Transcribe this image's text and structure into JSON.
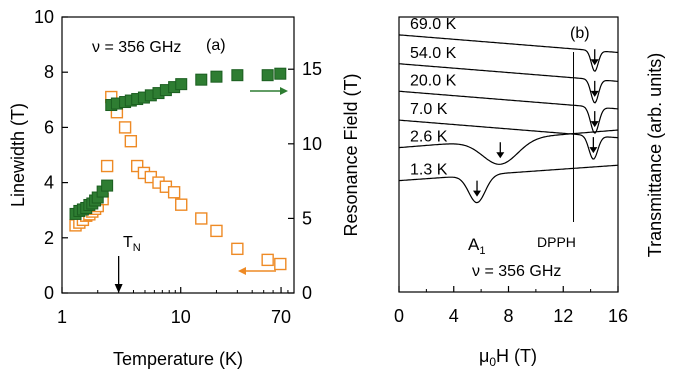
{
  "chart_data": [
    {
      "panel": "(a)",
      "type": "scatter",
      "annotation": "ν = 356 GHz",
      "xlabel": "Temperature (K)",
      "ylabel_left": "Linewidth (T)",
      "ylabel_right": "Resonance Field (T)",
      "x_scale": "log",
      "xlim": [
        1,
        90
      ],
      "ylim_left": [
        0,
        10
      ],
      "ylim_right": [
        0,
        18.5
      ],
      "x_ticks": [
        1,
        10,
        70
      ],
      "y_ticks_left": [
        0,
        2,
        4,
        6,
        8,
        10
      ],
      "y_ticks_right": [
        0,
        5,
        10,
        15
      ],
      "tn_label": "T",
      "tn_sub": "N",
      "tn_value": 3,
      "series": [
        {
          "color": "#ee8a25",
          "marker": "open-square",
          "axis": "left",
          "x": [
            1.3,
            1.4,
            1.5,
            1.6,
            1.7,
            1.8,
            1.9,
            2.0,
            2.2,
            2.4,
            2.6,
            2.9,
            3.4,
            3.8,
            4.3,
            4.9,
            5.6,
            6.5,
            7.5,
            8.8,
            10.1,
            14.9,
            20.0,
            30.0,
            54.0,
            69.0
          ],
          "y": [
            2.45,
            2.55,
            2.65,
            2.8,
            2.85,
            2.95,
            3.05,
            3.15,
            3.4,
            4.6,
            7.1,
            6.55,
            6.0,
            5.5,
            4.6,
            4.35,
            4.2,
            4.0,
            3.85,
            3.65,
            3.2,
            2.7,
            2.25,
            1.6,
            1.2,
            1.05
          ]
        },
        {
          "color": "#2e7d32",
          "marker": "filled-square",
          "axis": "right",
          "x": [
            1.3,
            1.4,
            1.5,
            1.6,
            1.7,
            1.8,
            1.9,
            2.0,
            2.2,
            2.4,
            2.6,
            2.9,
            3.4,
            3.8,
            4.3,
            4.9,
            5.6,
            6.5,
            7.5,
            8.8,
            10.1,
            14.9,
            20.0,
            30.0,
            54.0,
            69.0
          ],
          "y": [
            5.3,
            5.5,
            5.6,
            5.7,
            5.9,
            6.0,
            6.2,
            6.4,
            6.8,
            7.2,
            12.6,
            12.7,
            12.8,
            12.9,
            13.0,
            13.1,
            13.25,
            13.4,
            13.6,
            13.8,
            14.0,
            14.3,
            14.5,
            14.6,
            14.6,
            14.7
          ]
        }
      ]
    },
    {
      "panel": "(b)",
      "type": "line",
      "xlabel": "μ0H (T)",
      "xlabel_main": "μ",
      "xlabel_sub": "0",
      "xlabel_tail": "H (T)",
      "ylabel": "Transmittance (arb. units)",
      "xlim": [
        0,
        16
      ],
      "x_ticks": [
        0,
        4,
        8,
        12,
        16
      ],
      "annotation": "ν = 356 GHz",
      "dpph_label": "DPPH",
      "dpph_field": 12.75,
      "a1_label": "A",
      "a1_sub": "1",
      "a1_field": 5.7,
      "series": [
        {
          "name": "69.0 K",
          "baseline": 0.935,
          "slope": -0.004,
          "res_field": 14.3,
          "res_width": 0.35,
          "res_depth": 0.075
        },
        {
          "name": "54.0 K",
          "baseline": 0.83,
          "slope": -0.004,
          "res_field": 14.3,
          "res_width": 0.38,
          "res_depth": 0.085
        },
        {
          "name": "20.0 K",
          "baseline": 0.73,
          "slope": -0.004,
          "res_field": 14.3,
          "res_width": 0.42,
          "res_depth": 0.095
        },
        {
          "name": "7.0 K",
          "baseline": 0.625,
          "slope": -0.004,
          "res_field": 14.2,
          "res_width": 0.45,
          "res_depth": 0.085
        },
        {
          "name": "2.6 K",
          "baseline": 0.525,
          "slope": 0.004,
          "res_field": 7.4,
          "res_width": 1.8,
          "res_depth": 0.09
        },
        {
          "name": "1.3 K",
          "baseline": 0.405,
          "slope": 0.0035,
          "res_field": 5.7,
          "res_width": 0.85,
          "res_depth": 0.1
        }
      ]
    }
  ]
}
